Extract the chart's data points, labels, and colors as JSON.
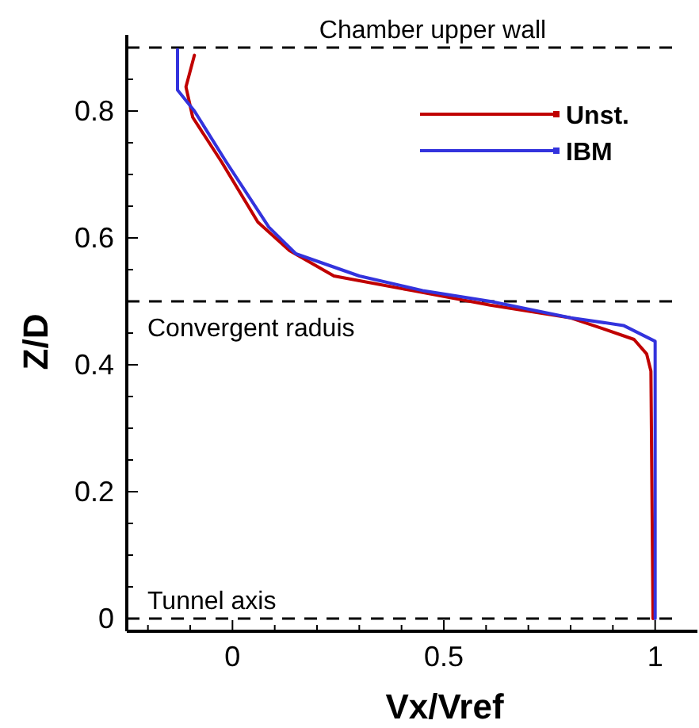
{
  "chart_data": {
    "type": "line",
    "xlabel": "Vx/Vref",
    "ylabel": "Z/D",
    "xlim": [
      -0.25,
      1.1
    ],
    "ylim": [
      -0.02,
      0.92
    ],
    "xticks": [
      {
        "value": -0.2,
        "label": null
      },
      {
        "value": -0.1,
        "label": null
      },
      0,
      {
        "value": 0.1,
        "label": null
      },
      {
        "value": 0.2,
        "label": null
      },
      {
        "value": 0.3,
        "label": null
      },
      {
        "value": 0.4,
        "label": null
      },
      0.5,
      {
        "value": 0.6,
        "label": null
      },
      {
        "value": 0.7,
        "label": null
      },
      {
        "value": 0.8,
        "label": null
      },
      {
        "value": 0.9,
        "label": null
      },
      1
    ],
    "yticks": [
      0,
      {
        "value": 0.05,
        "label": null
      },
      {
        "value": 0.1,
        "label": null
      },
      {
        "value": 0.15,
        "label": null
      },
      0.2,
      {
        "value": 0.25,
        "label": null
      },
      {
        "value": 0.3,
        "label": null
      },
      {
        "value": 0.35,
        "label": null
      },
      0.4,
      {
        "value": 0.45,
        "label": null
      },
      {
        "value": 0.5,
        "label": null
      },
      {
        "value": 0.55,
        "label": null
      },
      0.6,
      {
        "value": 0.65,
        "label": null
      },
      {
        "value": 0.7,
        "label": null
      },
      {
        "value": 0.75,
        "label": null
      },
      0.8,
      {
        "value": 0.85,
        "label": null
      },
      {
        "value": 0.9,
        "label": null
      }
    ],
    "grid": false,
    "legend": "top right",
    "marker": "none",
    "line_style": "solid",
    "series": [
      {
        "name": "Unst.",
        "color": "#c00000",
        "x": [
          -0.09,
          -0.11,
          -0.094,
          -0.026,
          0.06,
          0.135,
          0.24,
          0.425,
          0.61,
          0.8,
          0.876,
          0.95,
          0.98,
          0.99,
          0.995
        ],
        "values": [
          0.888,
          0.838,
          0.79,
          0.72,
          0.625,
          0.58,
          0.54,
          0.517,
          0.494,
          0.474,
          0.457,
          0.44,
          0.417,
          0.39,
          0
        ]
      },
      {
        "name": "IBM",
        "color": "#3333dd",
        "x": [
          -0.13,
          -0.13,
          -0.09,
          -0.015,
          0.086,
          0.15,
          0.3,
          0.45,
          0.61,
          0.8,
          0.925,
          1.0,
          1.0,
          1.0
        ],
        "values": [
          0.897,
          0.833,
          0.8,
          0.72,
          0.617,
          0.575,
          0.54,
          0.517,
          0.5,
          0.474,
          0.462,
          0.437,
          0.407,
          0
        ]
      }
    ],
    "ref_lines": [
      {
        "axis": "y",
        "value": 0.9,
        "label": "Chamber upper wall",
        "line_style": "dashed",
        "color": "#000000"
      },
      {
        "axis": "y",
        "value": 0.5,
        "label": "Convergent raduis",
        "line_style": "dashed",
        "color": "#000000"
      },
      {
        "axis": "y",
        "value": 0,
        "label": "Tunnel axis",
        "line_style": "dashed",
        "color": "#000000"
      }
    ]
  }
}
